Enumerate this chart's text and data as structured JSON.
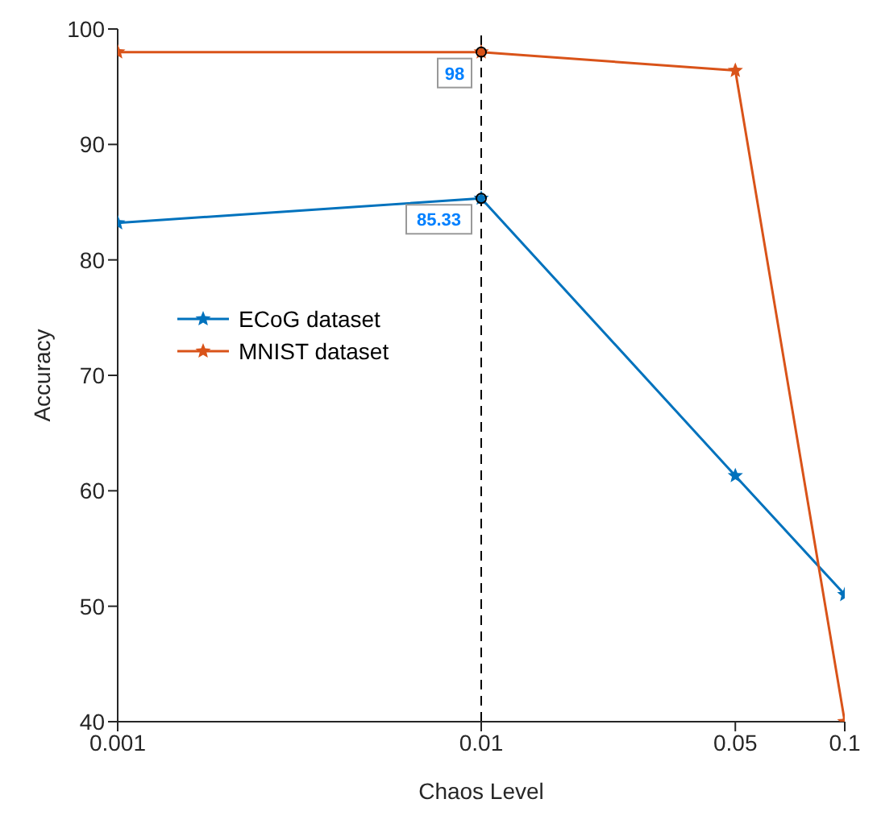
{
  "chart_data": {
    "type": "line",
    "xlabel": "Chaos Level",
    "ylabel": "Accuracy",
    "log": "x",
    "x": [
      0.001,
      0.01,
      0.05,
      0.1
    ],
    "series": [
      {
        "name": "ECoG dataset",
        "color": "#0072bd",
        "values": [
          83.2,
          85.33,
          61.3,
          51
        ]
      },
      {
        "name": "MNIST dataset",
        "color": "#d95319",
        "values": [
          98,
          98,
          96.4,
          40
        ]
      }
    ],
    "xlim": [
      0.001,
      0.1
    ],
    "xticks": [
      0.001,
      0.01,
      0.05,
      0.1
    ],
    "ylim": [
      40,
      100
    ],
    "yticks": [
      40,
      50,
      60,
      70,
      80,
      90,
      100
    ],
    "ref_lines": [
      {
        "axis": "x",
        "value": 0.01,
        "color": "#000000",
        "line_style": "dashed"
      }
    ],
    "annotations": [
      {
        "text": "98",
        "x": 0.01,
        "y": 98
      },
      {
        "text": "85.33",
        "x": 0.01,
        "y": 85.33
      }
    ],
    "legend": "left",
    "marker": "star",
    "line_style": "solid",
    "grid": false
  }
}
